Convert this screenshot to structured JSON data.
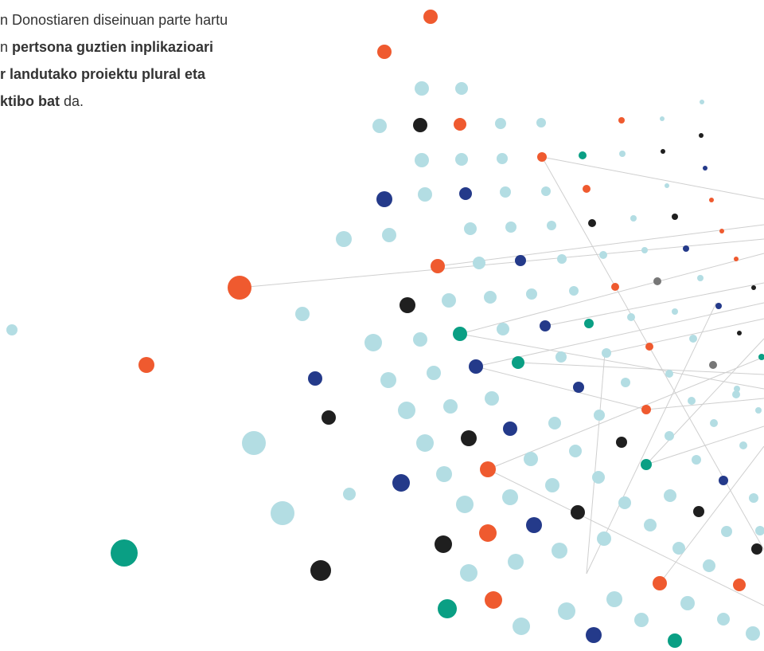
{
  "paragraph": {
    "lines": [
      [
        {
          "text": "n Donostiaren diseinuan parte hartu",
          "bold": false
        }
      ],
      [
        {
          "text": "n ",
          "bold": false
        },
        {
          "text": "pertsona guztien inplikazioari",
          "bold": true
        }
      ],
      [
        {
          "text": "r landutako proiektu plural eta",
          "bold": true
        }
      ],
      [
        {
          "text": "ktibo bat",
          "bold": true
        },
        {
          "text": " da.",
          "bold": false
        }
      ]
    ]
  }
}
